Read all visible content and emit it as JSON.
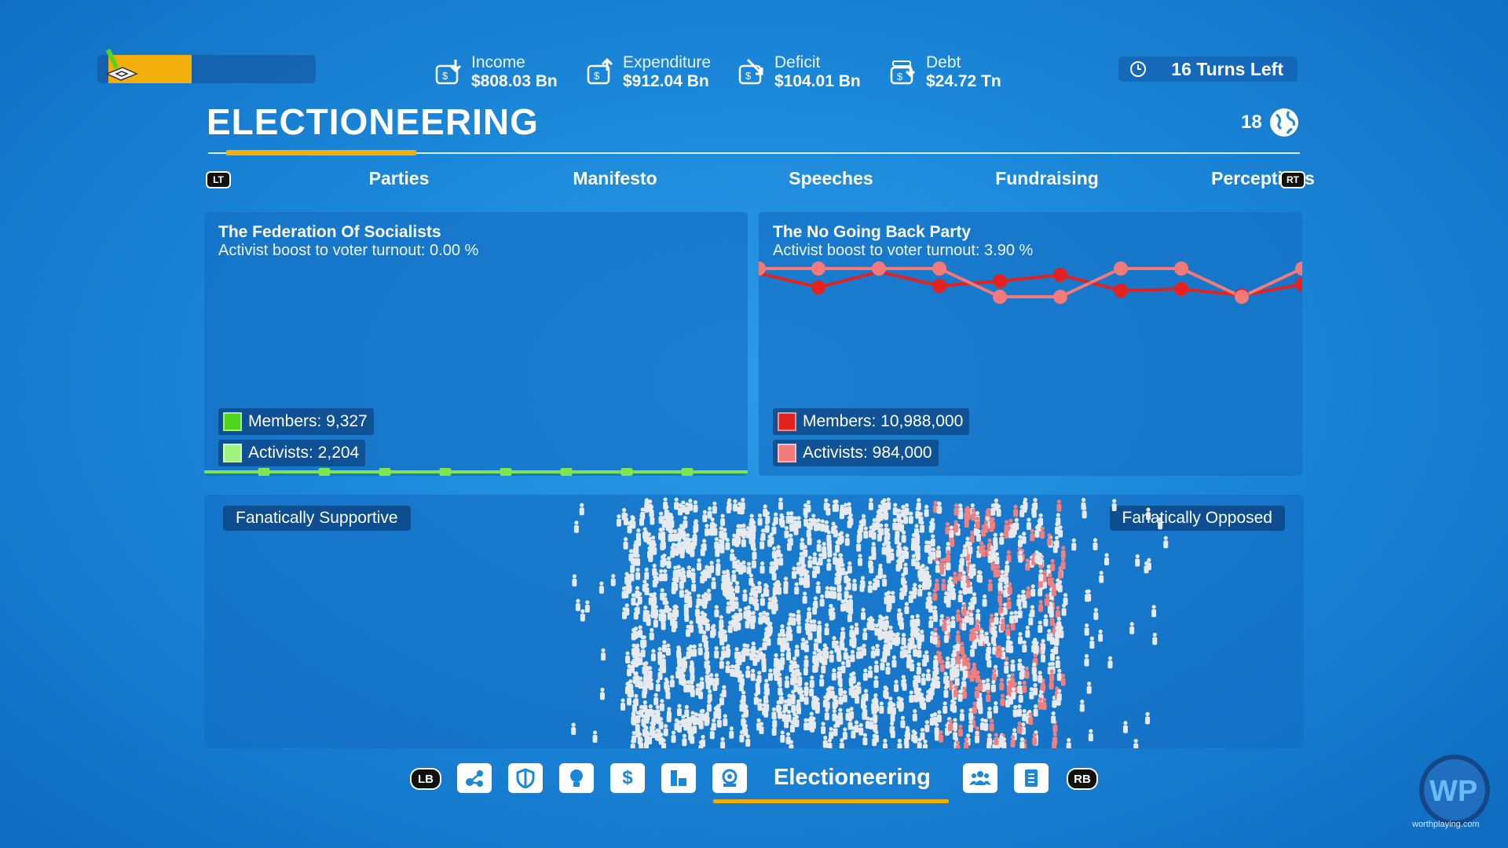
{
  "header": {
    "stats": [
      {
        "label": "Income",
        "value": "$808.03 Bn",
        "icon": "income-icon"
      },
      {
        "label": "Expenditure",
        "value": "$912.04 Bn",
        "icon": "expenditure-icon"
      },
      {
        "label": "Deficit",
        "value": "$104.01 Bn",
        "icon": "deficit-icon"
      },
      {
        "label": "Debt",
        "value": "$24.72 Tn",
        "icon": "debt-icon"
      }
    ],
    "turns_left": "16 Turns Left",
    "approval_fraction": 0.4,
    "world_count": "18"
  },
  "page": {
    "title": "ELECTIONEERING"
  },
  "tabs": {
    "left_hint": "LT",
    "right_hint": "RT",
    "items": [
      "Parties",
      "Manifesto",
      "Speeches",
      "Fundraising",
      "Perceptions"
    ],
    "active": "Parties"
  },
  "parties": [
    {
      "name": "The Federation Of Socialists",
      "turnout": "Activist boost to voter turnout: 0.00 %",
      "members": "Members: 9,327",
      "activists": "Activists: 2,204",
      "members_color": "#4fd51b",
      "activists_color": "#9ef47c"
    },
    {
      "name": "The No Going Back Party",
      "turnout": "Activist boost to voter turnout: 3.90 %",
      "members": "Members: 10,988,000",
      "activists": "Activists: 984,000",
      "members_color": "#e3211f",
      "activists_color": "#f47a7a"
    }
  ],
  "spectrum": {
    "left_label": "Fanatically Supportive",
    "right_label": "Fanatically Opposed",
    "voter_color": "#e6e9ee",
    "opposed_member_color": "#f08080"
  },
  "bottom_nav": {
    "left_hint": "LB",
    "right_hint": "RB",
    "items": [
      "network-icon",
      "shield-icon",
      "idea-icon",
      "budget-icon",
      "stats-icon",
      "electioneering-icon",
      "voters-icon",
      "documents-icon"
    ],
    "active_label": "Electioneering"
  },
  "watermark": {
    "logo": "WP",
    "text": "worthplaying.com"
  }
}
